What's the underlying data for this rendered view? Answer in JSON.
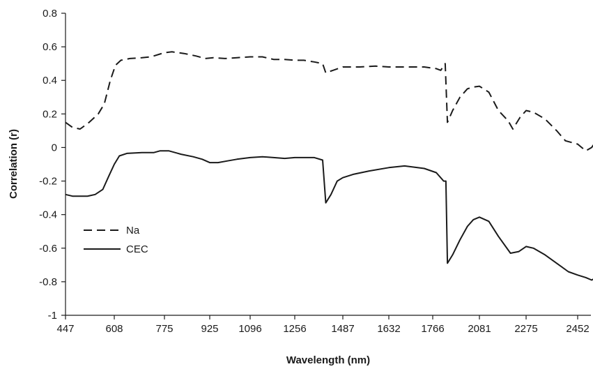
{
  "chart_data": {
    "type": "line",
    "title": "",
    "xlabel": "Wavelength (nm)",
    "ylabel": "Correlation (r)",
    "x_tick_labels": [
      "447",
      "608",
      "775",
      "925",
      "1096",
      "1256",
      "1487",
      "1632",
      "1766",
      "2081",
      "2275",
      "2452"
    ],
    "ylim": [
      -1,
      0.8
    ],
    "y_ticks": [
      0.8,
      0.6,
      0.4,
      0.2,
      0,
      -0.2,
      -0.4,
      -0.6,
      -0.8,
      -1
    ],
    "y_tick_labels": [
      "0.8",
      "0.6",
      "0.4",
      "0.2",
      "0",
      "-0.2",
      "-0.4",
      "-0.6",
      "-0.8",
      "-1"
    ],
    "grid": false,
    "legend_position": "bottom-left",
    "colors": {
      "line": "#1a1a1a",
      "axis": "#1a1a1a"
    },
    "series": [
      {
        "name": "Na",
        "style": "dashed",
        "points": [
          [
            447,
            0.15
          ],
          [
            470,
            0.12
          ],
          [
            495,
            0.11
          ],
          [
            525,
            0.15
          ],
          [
            555,
            0.2
          ],
          [
            575,
            0.26
          ],
          [
            595,
            0.4
          ],
          [
            612,
            0.49
          ],
          [
            630,
            0.52
          ],
          [
            660,
            0.53
          ],
          [
            700,
            0.535
          ],
          [
            730,
            0.54
          ],
          [
            775,
            0.565
          ],
          [
            800,
            0.57
          ],
          [
            840,
            0.56
          ],
          [
            880,
            0.545
          ],
          [
            910,
            0.53
          ],
          [
            940,
            0.535
          ],
          [
            990,
            0.53
          ],
          [
            1040,
            0.535
          ],
          [
            1096,
            0.54
          ],
          [
            1140,
            0.54
          ],
          [
            1180,
            0.525
          ],
          [
            1220,
            0.525
          ],
          [
            1256,
            0.52
          ],
          [
            1300,
            0.52
          ],
          [
            1350,
            0.51
          ],
          [
            1390,
            0.5
          ],
          [
            1405,
            0.445
          ],
          [
            1440,
            0.46
          ],
          [
            1487,
            0.48
          ],
          [
            1540,
            0.48
          ],
          [
            1590,
            0.485
          ],
          [
            1632,
            0.48
          ],
          [
            1680,
            0.48
          ],
          [
            1740,
            0.48
          ],
          [
            1790,
            0.47
          ],
          [
            1820,
            0.46
          ],
          [
            1850,
            0.5
          ],
          [
            1865,
            0.15
          ],
          [
            1900,
            0.22
          ],
          [
            1950,
            0.3
          ],
          [
            2000,
            0.35
          ],
          [
            2040,
            0.36
          ],
          [
            2081,
            0.365
          ],
          [
            2120,
            0.33
          ],
          [
            2160,
            0.22
          ],
          [
            2200,
            0.16
          ],
          [
            2220,
            0.11
          ],
          [
            2250,
            0.18
          ],
          [
            2275,
            0.22
          ],
          [
            2300,
            0.21
          ],
          [
            2340,
            0.17
          ],
          [
            2380,
            0.1
          ],
          [
            2410,
            0.04
          ],
          [
            2452,
            0.02
          ],
          [
            2480,
            -0.02
          ],
          [
            2500,
            0.0
          ],
          [
            2520,
            0.05
          ]
        ]
      },
      {
        "name": "CEC",
        "style": "solid",
        "points": [
          [
            447,
            -0.28
          ],
          [
            470,
            -0.29
          ],
          [
            495,
            -0.29
          ],
          [
            520,
            -0.29
          ],
          [
            545,
            -0.28
          ],
          [
            570,
            -0.25
          ],
          [
            590,
            -0.17
          ],
          [
            608,
            -0.1
          ],
          [
            625,
            -0.05
          ],
          [
            650,
            -0.035
          ],
          [
            700,
            -0.03
          ],
          [
            740,
            -0.03
          ],
          [
            760,
            -0.02
          ],
          [
            790,
            -0.02
          ],
          [
            830,
            -0.04
          ],
          [
            870,
            -0.055
          ],
          [
            900,
            -0.07
          ],
          [
            925,
            -0.09
          ],
          [
            960,
            -0.09
          ],
          [
            1000,
            -0.08
          ],
          [
            1040,
            -0.07
          ],
          [
            1096,
            -0.06
          ],
          [
            1140,
            -0.055
          ],
          [
            1180,
            -0.06
          ],
          [
            1220,
            -0.065
          ],
          [
            1256,
            -0.06
          ],
          [
            1300,
            -0.06
          ],
          [
            1350,
            -0.06
          ],
          [
            1390,
            -0.075
          ],
          [
            1405,
            -0.33
          ],
          [
            1430,
            -0.28
          ],
          [
            1460,
            -0.2
          ],
          [
            1487,
            -0.18
          ],
          [
            1520,
            -0.16
          ],
          [
            1570,
            -0.14
          ],
          [
            1632,
            -0.12
          ],
          [
            1680,
            -0.11
          ],
          [
            1740,
            -0.125
          ],
          [
            1790,
            -0.15
          ],
          [
            1840,
            -0.2
          ],
          [
            1855,
            -0.2
          ],
          [
            1865,
            -0.69
          ],
          [
            1900,
            -0.64
          ],
          [
            1950,
            -0.55
          ],
          [
            2000,
            -0.47
          ],
          [
            2040,
            -0.43
          ],
          [
            2081,
            -0.415
          ],
          [
            2120,
            -0.44
          ],
          [
            2160,
            -0.53
          ],
          [
            2210,
            -0.63
          ],
          [
            2245,
            -0.62
          ],
          [
            2275,
            -0.59
          ],
          [
            2300,
            -0.6
          ],
          [
            2340,
            -0.64
          ],
          [
            2380,
            -0.69
          ],
          [
            2420,
            -0.74
          ],
          [
            2452,
            -0.76
          ],
          [
            2480,
            -0.775
          ],
          [
            2500,
            -0.79
          ],
          [
            2520,
            -0.77
          ]
        ]
      }
    ]
  }
}
